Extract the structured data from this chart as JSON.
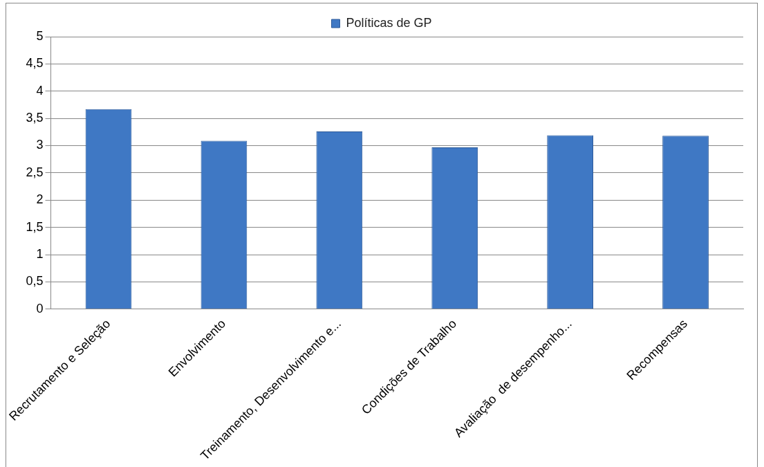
{
  "chart_data": {
    "type": "bar",
    "categories": [
      "Recrutamento e Seleção",
      "Envolvimento",
      "Treinamento, Desenvolvimento e...",
      "Condições de Trabalho",
      "Avaliação  de desempenho...",
      "Recompensas"
    ],
    "series": [
      {
        "name": "Políticas de GP",
        "color": "#3f78c4",
        "values": [
          3.67,
          3.09,
          3.26,
          2.97,
          3.19,
          3.18
        ]
      }
    ],
    "ylim": [
      0,
      5
    ],
    "yticks": [
      0,
      {
        "value": 0.5,
        "label": "0,5"
      },
      1,
      {
        "value": 1.5,
        "label": "1,5"
      },
      2,
      {
        "value": 2.5,
        "label": "2,5"
      },
      3,
      {
        "value": 3.5,
        "label": "3,5"
      },
      4,
      {
        "value": 4.5,
        "label": "4,5"
      },
      5
    ],
    "grid": "y",
    "legend": "top"
  }
}
